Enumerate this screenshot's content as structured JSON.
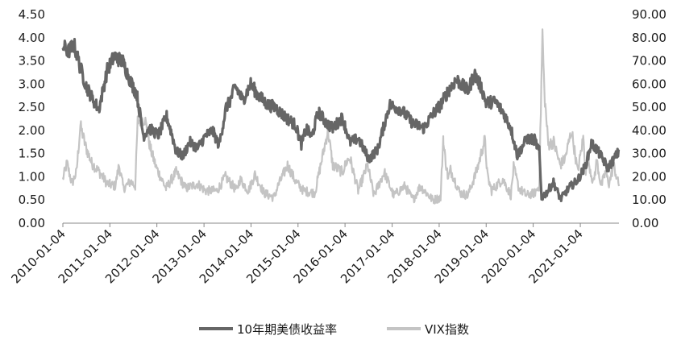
{
  "chart_data": {
    "type": "line",
    "title": "",
    "xlabel": "",
    "ylabel": "",
    "y2label": "",
    "grid": false,
    "legend_position": "bottom",
    "x_ticks": [
      "2010-01-04",
      "2011-01-04",
      "2012-01-04",
      "2013-01-04",
      "2014-01-04",
      "2015-01-04",
      "2016-01-04",
      "2017-01-04",
      "2018-01-04",
      "2019-01-04",
      "2020-01-04",
      "2021-01-04"
    ],
    "x_range": [
      "2010-01-04",
      "2021-10-31"
    ],
    "y_left": {
      "min": 0,
      "max": 4.5,
      "ticks": [
        "0.00",
        "0.50",
        "1.00",
        "1.50",
        "2.00",
        "2.50",
        "3.00",
        "3.50",
        "4.00",
        "4.50"
      ]
    },
    "y_right": {
      "min": 0,
      "max": 90,
      "ticks": [
        "0.00",
        "10.00",
        "20.00",
        "30.00",
        "40.00",
        "50.00",
        "60.00",
        "70.00",
        "80.00",
        "90.00"
      ]
    },
    "series": [
      {
        "name": "10年期美债收益率",
        "axis": "left",
        "color": "#666666",
        "x": [
          "2010-01-04",
          "2010-02-15",
          "2010-04-01",
          "2010-05-15",
          "2010-07-01",
          "2010-08-15",
          "2010-10-10",
          "2010-12-15",
          "2011-02-08",
          "2011-04-15",
          "2011-06-15",
          "2011-08-01",
          "2011-09-22",
          "2011-11-01",
          "2012-01-15",
          "2012-03-20",
          "2012-05-01",
          "2012-06-01",
          "2012-07-25",
          "2012-09-15",
          "2012-11-15",
          "2013-01-15",
          "2013-03-10",
          "2013-05-01",
          "2013-06-25",
          "2013-07-20",
          "2013-09-05",
          "2013-11-01",
          "2014-01-02",
          "2014-03-01",
          "2014-05-15",
          "2014-07-15",
          "2014-08-15",
          "2014-10-15",
          "2014-12-15",
          "2015-01-30",
          "2015-03-10",
          "2015-04-20",
          "2015-06-10",
          "2015-08-15",
          "2015-10-01",
          "2015-12-15",
          "2016-02-11",
          "2016-04-15",
          "2016-07-08",
          "2016-09-15",
          "2016-11-15",
          "2016-12-15",
          "2017-03-15",
          "2017-06-15",
          "2017-09-07",
          "2017-11-15",
          "2018-01-15",
          "2018-03-15",
          "2018-05-17",
          "2018-08-15",
          "2018-10-05",
          "2018-12-01",
          "2019-01-03",
          "2019-03-15",
          "2019-05-15",
          "2019-07-15",
          "2019-09-03",
          "2019-11-15",
          "2020-01-15",
          "2020-02-20",
          "2020-03-09",
          "2020-04-15",
          "2020-06-10",
          "2020-08-04",
          "2020-10-15",
          "2020-12-15",
          "2021-02-15",
          "2021-03-31",
          "2021-05-15",
          "2021-07-15",
          "2021-08-04",
          "2021-09-15",
          "2021-10-31"
        ],
        "values": [
          3.82,
          3.7,
          3.85,
          3.4,
          2.98,
          2.72,
          2.45,
          3.3,
          3.6,
          3.48,
          3.05,
          2.78,
          1.88,
          2.05,
          1.9,
          2.3,
          1.9,
          1.55,
          1.45,
          1.75,
          1.62,
          1.88,
          2.0,
          1.68,
          2.5,
          2.6,
          2.95,
          2.65,
          3.0,
          2.75,
          2.55,
          2.5,
          2.4,
          2.25,
          2.12,
          1.7,
          2.05,
          1.85,
          2.4,
          2.15,
          2.05,
          2.28,
          1.74,
          1.83,
          1.38,
          1.6,
          2.25,
          2.55,
          2.45,
          2.15,
          2.05,
          2.35,
          2.55,
          2.85,
          3.1,
          2.85,
          3.22,
          2.9,
          2.6,
          2.62,
          2.4,
          2.05,
          1.46,
          1.82,
          1.8,
          1.55,
          0.55,
          0.65,
          0.88,
          0.52,
          0.78,
          0.93,
          1.25,
          1.72,
          1.58,
          1.3,
          1.18,
          1.35,
          1.55
        ]
      },
      {
        "name": "VIX指数",
        "axis": "right",
        "color": "#c4c4c4",
        "x": [
          "2010-01-04",
          "2010-02-05",
          "2010-03-15",
          "2010-04-20",
          "2010-05-20",
          "2010-06-30",
          "2010-08-15",
          "2010-10-15",
          "2010-12-15",
          "2011-02-15",
          "2011-03-16",
          "2011-04-20",
          "2011-06-15",
          "2011-07-20",
          "2011-08-08",
          "2011-10-03",
          "2011-11-15",
          "2011-12-30",
          "2012-03-15",
          "2012-06-01",
          "2012-08-15",
          "2012-11-15",
          "2013-01-15",
          "2013-04-15",
          "2013-06-20",
          "2013-09-15",
          "2013-10-10",
          "2013-12-15",
          "2014-02-03",
          "2014-04-15",
          "2014-07-01",
          "2014-08-01",
          "2014-10-15",
          "2014-12-16",
          "2015-02-15",
          "2015-05-15",
          "2015-08-24",
          "2015-10-01",
          "2015-12-15",
          "2016-01-20",
          "2016-02-11",
          "2016-04-15",
          "2016-06-27",
          "2016-08-15",
          "2016-11-04",
          "2017-01-15",
          "2017-04-13",
          "2017-06-15",
          "2017-08-10",
          "2017-11-15",
          "2018-01-15",
          "2018-02-05",
          "2018-02-08",
          "2018-03-15",
          "2018-04-02",
          "2018-06-15",
          "2018-08-15",
          "2018-10-25",
          "2018-12-24",
          "2019-01-15",
          "2019-02-15",
          "2019-05-13",
          "2019-07-15",
          "2019-08-05",
          "2019-09-15",
          "2019-11-15",
          "2020-01-15",
          "2020-02-20",
          "2020-03-16",
          "2020-03-31",
          "2020-04-30",
          "2020-06-11",
          "2020-07-31",
          "2020-09-08",
          "2020-10-28",
          "2020-12-15",
          "2021-01-27",
          "2021-02-15",
          "2021-03-04",
          "2021-04-15",
          "2021-05-12",
          "2021-06-15",
          "2021-07-19",
          "2021-08-15",
          "2021-09-20",
          "2021-10-31"
        ],
        "values": [
          19,
          26,
          17,
          22,
          42,
          33,
          26,
          22,
          17,
          16,
          25,
          15,
          18,
          16,
          44,
          45,
          32,
          24,
          15,
          22,
          15,
          17,
          14,
          14,
          20,
          14,
          19,
          14,
          21,
          13,
          11,
          16,
          25,
          18,
          14,
          13,
          40,
          25,
          22,
          27,
          28,
          14,
          25,
          12,
          22,
          12,
          16,
          10,
          16,
          10,
          11,
          37,
          33,
          19,
          23,
          13,
          12,
          23,
          36,
          20,
          14,
          19,
          12,
          24,
          15,
          12,
          13,
          16,
          82,
          56,
          34,
          35,
          25,
          28,
          40,
          22,
          37,
          22,
          28,
          17,
          27,
          16,
          22,
          17,
          25,
          16
        ]
      }
    ]
  }
}
